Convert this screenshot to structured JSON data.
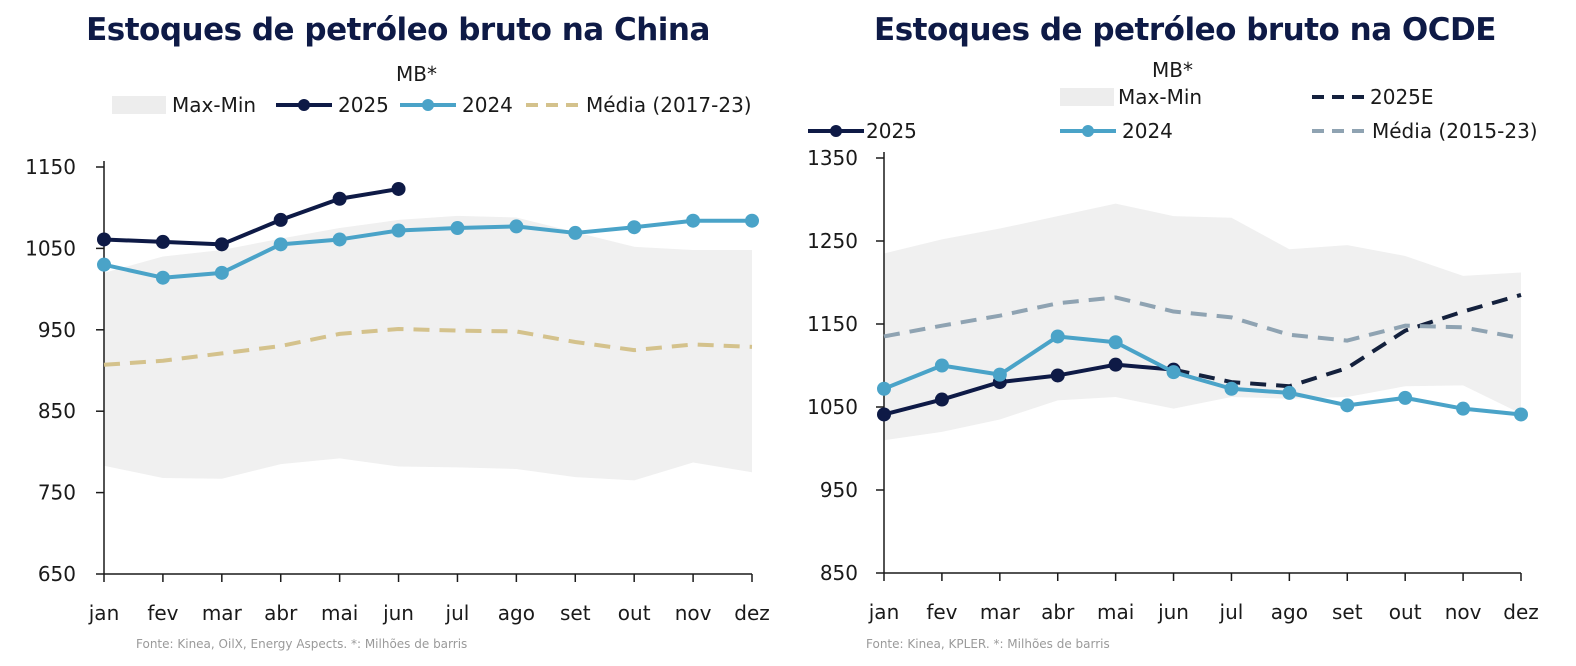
{
  "chart_data": [
    {
      "type": "line",
      "title": "Estoques de petróleo bruto na China",
      "subtitle": "MB*",
      "categories": [
        "jan",
        "fev",
        "mar",
        "abr",
        "mai",
        "jun",
        "jul",
        "ago",
        "set",
        "out",
        "nov",
        "dez"
      ],
      "ylim": [
        650,
        1150
      ],
      "yticks": [
        650,
        750,
        850,
        950,
        1050,
        1150
      ],
      "grid": false,
      "legend_position": "top",
      "band": {
        "name": "Max-Min",
        "color": "#f0f0f0",
        "max": [
          1020,
          1040,
          1048,
          1062,
          1075,
          1085,
          1090,
          1088,
          1070,
          1052,
          1048,
          1048
        ],
        "min": [
          783,
          768,
          767,
          785,
          792,
          782,
          781,
          779,
          769,
          765,
          787,
          775
        ]
      },
      "series": [
        {
          "name": "2025",
          "color": "#0e1a46",
          "style": "solid",
          "markers": true,
          "values": [
            1061,
            1058,
            1055,
            1085,
            1111,
            1123,
            null,
            null,
            null,
            null,
            null,
            null
          ]
        },
        {
          "name": "2024",
          "color": "#4aa3c8",
          "style": "solid",
          "markers": true,
          "values": [
            1030,
            1014,
            1020,
            1055,
            1061,
            1072,
            1075,
            1077,
            1069,
            1076,
            1084,
            1084
          ]
        },
        {
          "name": "Média (2017-23)",
          "color": "#d4c28c",
          "style": "dashed",
          "markers": false,
          "values": [
            907,
            912,
            921,
            930,
            945,
            951,
            949,
            948,
            935,
            925,
            932,
            929
          ]
        }
      ],
      "source": "Fonte: Kinea, OilX, Energy Aspects. *: Milhões de barris"
    },
    {
      "type": "line",
      "title": "Estoques de petróleo bruto na OCDE",
      "subtitle": "MB*",
      "categories": [
        "jan",
        "fev",
        "mar",
        "abr",
        "mai",
        "jun",
        "jul",
        "ago",
        "set",
        "out",
        "nov",
        "dez"
      ],
      "ylim": [
        850,
        1350
      ],
      "yticks": [
        850,
        950,
        1050,
        1150,
        1250,
        1350
      ],
      "grid": false,
      "legend_position": "top",
      "band": {
        "name": "Max-Min",
        "color": "#f0f0f0",
        "max": [
          1235,
          1252,
          1265,
          1280,
          1295,
          1280,
          1278,
          1240,
          1245,
          1232,
          1208,
          1212
        ],
        "min": [
          1010,
          1020,
          1035,
          1058,
          1062,
          1048,
          1062,
          1060,
          1062,
          1075,
          1076,
          1042
        ]
      },
      "series": [
        {
          "name": "2025",
          "color": "#0e1a46",
          "style": "solid",
          "markers": true,
          "values": [
            1041,
            1059,
            1080,
            1088,
            1101,
            1095,
            null,
            null,
            null,
            null,
            null,
            null
          ]
        },
        {
          "name": "2024",
          "color": "#4aa3c8",
          "style": "solid",
          "markers": true,
          "values": [
            1072,
            1100,
            1089,
            1135,
            1128,
            1092,
            1072,
            1067,
            1052,
            1061,
            1048,
            1041
          ]
        },
        {
          "name": "2025E",
          "color": "#14213d",
          "style": "dashed",
          "markers": false,
          "values": [
            null,
            null,
            null,
            null,
            null,
            1095,
            1080,
            1075,
            1097,
            1142,
            1165,
            1185
          ]
        },
        {
          "name": "Média (2015-23)",
          "color": "#8fa3b2",
          "style": "dashed",
          "markers": false,
          "values": [
            1135,
            1148,
            1160,
            1175,
            1182,
            1165,
            1158,
            1137,
            1130,
            1148,
            1146,
            1133
          ]
        }
      ],
      "source": "Fonte: Kinea, KPLER. *: Milhões de barris"
    }
  ]
}
